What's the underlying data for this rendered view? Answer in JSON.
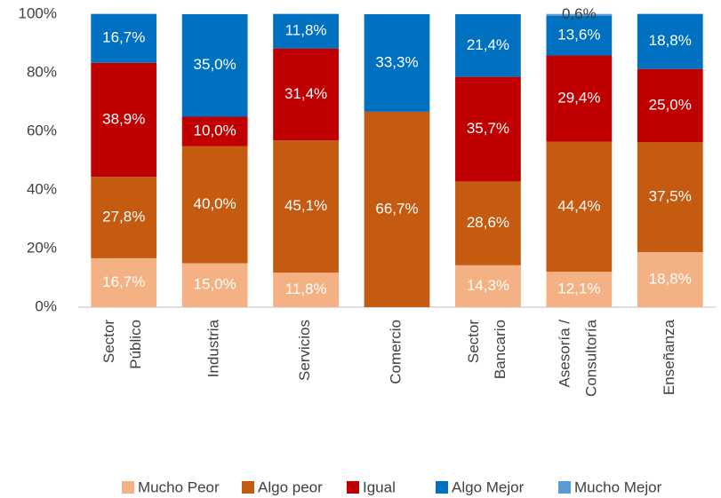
{
  "chart_data": {
    "type": "stacked_bar",
    "categories": [
      "Sector Público",
      "Industria",
      "Servicios",
      "Comercio",
      "Sector Bancario",
      "Asesoría / Consultoría",
      "Enseñanza"
    ],
    "series": [
      {
        "name": "Mucho Peor",
        "color": "#f4b183",
        "values": [
          16.7,
          15.0,
          11.8,
          0,
          14.3,
          12.1,
          18.8
        ],
        "value_labels": [
          "16,7%",
          "15,0%",
          "11,8%",
          null,
          "14,3%",
          "12,1%",
          "18,8%"
        ]
      },
      {
        "name": "Algo peor",
        "color": "#c55a11",
        "values": [
          27.8,
          40.0,
          45.1,
          66.7,
          28.6,
          44.4,
          37.5
        ],
        "value_labels": [
          "27,8%",
          "40,0%",
          "45,1%",
          "66,7%",
          "28,6%",
          "44,4%",
          "37,5%"
        ]
      },
      {
        "name": "Igual",
        "color": "#c00000",
        "values": [
          38.9,
          10.0,
          31.4,
          0,
          35.7,
          29.4,
          25.0
        ],
        "value_labels": [
          "38,9%",
          "10,0%",
          "31,4%",
          null,
          "35,7%",
          "29,4%",
          "25,0%"
        ]
      },
      {
        "name": "Algo Mejor",
        "color": "#0070c0",
        "values": [
          16.7,
          35.0,
          11.8,
          33.3,
          21.4,
          13.6,
          18.8
        ],
        "value_labels": [
          "16,7%",
          "35,0%",
          "11,8%",
          "33,3%",
          "21,4%",
          "13,6%",
          "18,8%"
        ]
      },
      {
        "name": "Mucho Mejor",
        "color": "#5b9bd5",
        "values": [
          0,
          0,
          0,
          0,
          0,
          0.6,
          0
        ],
        "value_labels": [
          null,
          null,
          null,
          null,
          null,
          "0,6%",
          null
        ]
      }
    ],
    "ylim": [
      0,
      100
    ],
    "yticks": [
      {
        "value": 0,
        "label": "0%"
      },
      {
        "value": 20,
        "label": "20%"
      },
      {
        "value": 40,
        "label": "40%"
      },
      {
        "value": 60,
        "label": "60%"
      },
      {
        "value": 80,
        "label": "80%"
      },
      {
        "value": 100,
        "label": "100%"
      }
    ],
    "grid": false,
    "legend": "bottom"
  }
}
